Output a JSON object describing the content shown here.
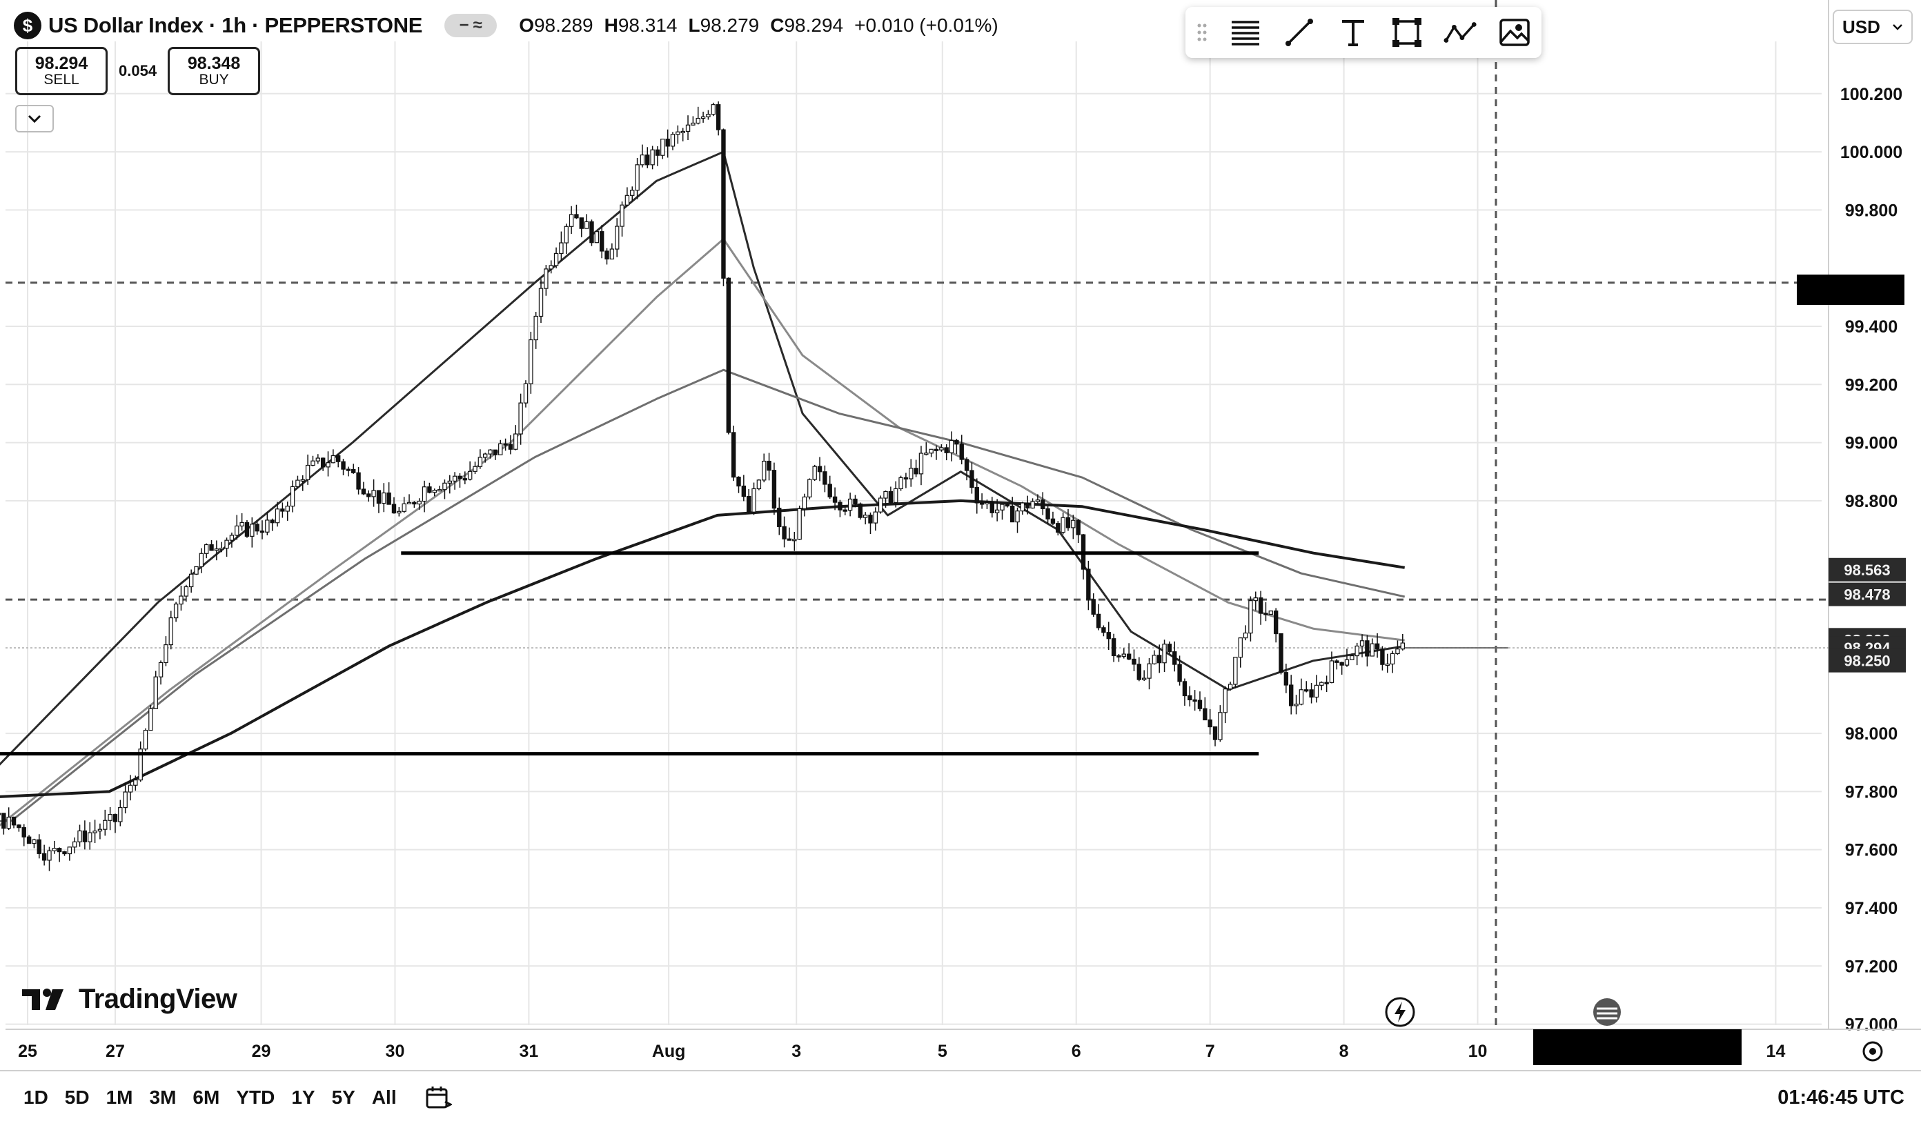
{
  "header": {
    "symbol_logo": "$",
    "title": "US Dollar Index · 1h · PEPPERSTONE",
    "ohlc": {
      "o_label": "O",
      "o": "98.289",
      "h_label": "H",
      "h": "98.314",
      "l_label": "L",
      "l": "98.279",
      "c_label": "C",
      "c": "98.294",
      "change": "+0.010 (+0.01%)"
    }
  },
  "trade": {
    "sell_price": "98.294",
    "sell_label": "SELL",
    "spread": "0.054",
    "buy_price": "98.348",
    "buy_label": "BUY"
  },
  "currency": "USD",
  "branding": "TradingView",
  "timeframes": [
    "1D",
    "5D",
    "1M",
    "3M",
    "6M",
    "YTD",
    "1Y",
    "5Y",
    "All"
  ],
  "clock": "01:46:45 UTC",
  "toolbar_icons": [
    "drag-handle-icon",
    "lines-icon",
    "trendline-icon",
    "text-icon",
    "rectangle-icon",
    "pattern-icon",
    "image-icon"
  ],
  "chart_data": {
    "type": "candlestick",
    "x_ticks": [
      "25",
      "27",
      "29",
      "30",
      "31",
      "Aug",
      "3",
      "5",
      "6",
      "7",
      "8",
      "10",
      "14"
    ],
    "ylim": [
      96.98,
      100.5
    ],
    "y_ticks": [
      "100.200",
      "100.000",
      "99.800",
      "99.400",
      "99.200",
      "99.000",
      "98.800",
      "98.000",
      "97.800",
      "97.600",
      "97.400",
      "97.200",
      "97.000"
    ],
    "price_tags": [
      {
        "label": "98.563",
        "value": 98.563,
        "style": "dark"
      },
      {
        "label": "98.478",
        "value": 98.478,
        "style": "dark"
      },
      {
        "label": "98.322",
        "value": 98.322,
        "style": "dark"
      },
      {
        "label": "98.294",
        "value": 98.294,
        "style": "dark"
      },
      {
        "label": "98.250",
        "value": 98.25,
        "style": "dark"
      }
    ],
    "horizontal_lines": [
      {
        "value": 98.62,
        "from": 2.9,
        "to": 9.95
      },
      {
        "value": 97.93,
        "from": -0.65,
        "to": 9.95
      }
    ],
    "dashed_lines": [
      99.55,
      98.46
    ],
    "price_line": 98.294,
    "crosshair_x": 11.9,
    "close_path": [
      [
        -1.95,
        97.3
      ],
      [
        -1.6,
        97.45
      ],
      [
        -1.3,
        97.5
      ],
      [
        -1.0,
        97.62
      ],
      [
        -0.7,
        97.8
      ],
      [
        -0.5,
        97.72
      ],
      [
        -0.25,
        97.68
      ],
      [
        0.0,
        97.58
      ],
      [
        0.3,
        97.65
      ],
      [
        0.55,
        97.7
      ],
      [
        0.75,
        97.9
      ],
      [
        0.95,
        98.3
      ],
      [
        1.15,
        98.55
      ],
      [
        1.35,
        98.65
      ],
      [
        1.6,
        98.7
      ],
      [
        1.85,
        98.72
      ],
      [
        2.1,
        98.9
      ],
      [
        2.35,
        98.95
      ],
      [
        2.6,
        98.85
      ],
      [
        2.9,
        98.75
      ],
      [
        3.1,
        98.85
      ],
      [
        3.4,
        98.88
      ],
      [
        3.6,
        98.95
      ],
      [
        3.85,
        99.02
      ],
      [
        4.05,
        99.55
      ],
      [
        4.3,
        99.8
      ],
      [
        4.6,
        99.65
      ],
      [
        4.85,
        99.95
      ],
      [
        5.15,
        100.05
      ],
      [
        5.35,
        100.1
      ],
      [
        5.5,
        100.2
      ],
      [
        5.6,
        98.95
      ],
      [
        5.75,
        98.75
      ],
      [
        5.9,
        98.95
      ],
      [
        6.0,
        98.7
      ],
      [
        6.1,
        98.65
      ],
      [
        6.3,
        98.9
      ],
      [
        6.5,
        98.8
      ],
      [
        6.75,
        98.75
      ],
      [
        7.0,
        98.85
      ],
      [
        7.2,
        98.95
      ],
      [
        7.45,
        99.0
      ],
      [
        7.65,
        98.8
      ],
      [
        7.9,
        98.75
      ],
      [
        8.1,
        98.8
      ],
      [
        8.3,
        98.72
      ],
      [
        8.45,
        98.7
      ],
      [
        8.55,
        98.45
      ],
      [
        8.75,
        98.3
      ],
      [
        9.0,
        98.2
      ],
      [
        9.2,
        98.3
      ],
      [
        9.4,
        98.1
      ],
      [
        9.6,
        98.0
      ],
      [
        9.75,
        98.25
      ],
      [
        9.9,
        98.45
      ],
      [
        10.05,
        98.4
      ],
      [
        10.2,
        98.1
      ],
      [
        10.4,
        98.15
      ],
      [
        10.6,
        98.25
      ],
      [
        10.8,
        98.3
      ],
      [
        11.0,
        98.25
      ],
      [
        11.15,
        98.3
      ]
    ],
    "series": [
      {
        "values": [
          [
            -2.5,
            97.45
          ],
          [
            -0.5,
            97.85
          ],
          [
            0.9,
            98.45
          ],
          [
            2.5,
            99.0
          ],
          [
            4.0,
            99.55
          ],
          [
            5.0,
            99.9
          ],
          [
            5.55,
            100.0
          ],
          [
            5.8,
            99.6
          ],
          [
            6.2,
            99.1
          ],
          [
            6.9,
            98.75
          ],
          [
            7.5,
            98.9
          ],
          [
            8.3,
            98.7
          ],
          [
            8.9,
            98.35
          ],
          [
            9.7,
            98.15
          ],
          [
            10.4,
            98.25
          ],
          [
            11.15,
            98.3
          ]
        ]
      },
      {
        "values": [
          [
            -2.5,
            97.3
          ],
          [
            -0.5,
            97.65
          ],
          [
            1.0,
            98.15
          ],
          [
            2.3,
            98.55
          ],
          [
            3.8,
            99.0
          ],
          [
            5.0,
            99.5
          ],
          [
            5.55,
            99.7
          ],
          [
            6.2,
            99.3
          ],
          [
            7.0,
            99.05
          ],
          [
            8.0,
            98.85
          ],
          [
            8.8,
            98.65
          ],
          [
            9.7,
            98.45
          ],
          [
            10.4,
            98.36
          ],
          [
            11.15,
            98.32
          ]
        ]
      },
      {
        "values": [
          [
            -2.5,
            97.65
          ],
          [
            -0.3,
            97.7
          ],
          [
            1.2,
            98.2
          ],
          [
            2.6,
            98.6
          ],
          [
            4.0,
            98.95
          ],
          [
            5.0,
            99.15
          ],
          [
            5.55,
            99.25
          ],
          [
            6.5,
            99.1
          ],
          [
            7.5,
            99.0
          ],
          [
            8.5,
            98.88
          ],
          [
            9.4,
            98.7
          ],
          [
            10.3,
            98.55
          ],
          [
            11.15,
            98.47
          ]
        ]
      },
      {
        "values": [
          [
            -2.5,
            97.85
          ],
          [
            -0.5,
            97.78
          ],
          [
            0.5,
            97.8
          ],
          [
            1.5,
            98.0
          ],
          [
            2.8,
            98.3
          ],
          [
            3.6,
            98.45
          ],
          [
            4.5,
            98.6
          ],
          [
            5.5,
            98.75
          ],
          [
            6.5,
            98.78
          ],
          [
            7.5,
            98.8
          ],
          [
            8.5,
            98.78
          ],
          [
            9.5,
            98.7
          ],
          [
            10.4,
            98.62
          ],
          [
            11.15,
            98.57
          ]
        ]
      }
    ]
  }
}
